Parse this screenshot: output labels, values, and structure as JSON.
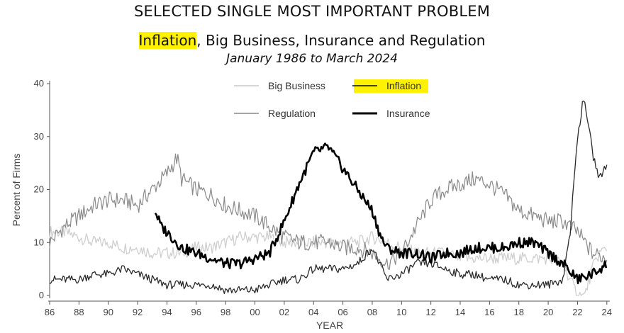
{
  "header": {
    "title": "SELECTED SINGLE MOST IMPORTANT PROBLEM",
    "subtitle_highlight": "Inflation",
    "subtitle_rest": ", Big Business, Insurance and Regulation",
    "date_range": "January 1986 to March 2024"
  },
  "colors": {
    "big_business": "#cfcfcf",
    "inflation": "#2b2b2b",
    "regulation": "#8a8a8a",
    "insurance": "#000000",
    "highlight": "#fff200"
  },
  "chart_data": {
    "type": "line",
    "title": "SELECTED SINGLE MOST IMPORTANT PROBLEM",
    "subtitle": "Inflation, Big Business, Insurance and Regulation",
    "xlabel": "YEAR",
    "ylabel": "Percent of Firms",
    "xlim": [
      1986,
      2024.3
    ],
    "ylim": [
      0,
      40
    ],
    "x_ticks": [
      1986,
      1988,
      1990,
      1992,
      1994,
      1996,
      1998,
      2000,
      2002,
      2004,
      2006,
      2008,
      2010,
      2012,
      2014,
      2016,
      2018,
      2020,
      2022,
      2024
    ],
    "x_tick_labels": [
      "86",
      "88",
      "90",
      "92",
      "94",
      "96",
      "98",
      "00",
      "02",
      "04",
      "06",
      "08",
      "10",
      "12",
      "14",
      "16",
      "18",
      "20",
      "22",
      "24"
    ],
    "y_ticks": [
      0,
      10,
      20,
      30,
      40
    ],
    "y_tick_labels": [
      "0",
      "10",
      "20",
      "30",
      "40"
    ],
    "grid": false,
    "legend_position": "top-center",
    "series": [
      {
        "name": "Big Business",
        "x": [
          1986,
          1987,
          1988,
          1989,
          1990,
          1991,
          1992,
          1993,
          1994,
          1995,
          1996,
          1997,
          1998,
          1999,
          2000,
          2001,
          2002,
          2003,
          2004,
          2005,
          2006,
          2007,
          2008,
          2009,
          2010,
          2011,
          2012,
          2013,
          2014,
          2015,
          2016,
          2017,
          2018,
          2019,
          2020,
          2021,
          2021.5,
          2022,
          2022.5,
          2023,
          2023.5,
          2024
        ],
        "y": [
          12,
          12,
          11,
          10,
          10,
          9,
          9,
          8,
          8,
          8,
          9,
          9,
          10,
          11,
          11,
          11,
          10,
          10,
          10,
          10,
          10,
          10,
          11,
          10,
          9,
          8,
          8,
          8,
          7,
          7,
          7,
          7,
          7,
          7,
          7,
          6,
          3,
          0,
          0,
          5,
          8,
          9
        ]
      },
      {
        "name": "Inflation",
        "x": [
          1986,
          1987,
          1988,
          1989,
          1990,
          1991,
          1992,
          1993,
          1994,
          1995,
          1996,
          1997,
          1998,
          1999,
          2000,
          2001,
          2002,
          2003,
          2004,
          2005,
          2006,
          2007,
          2008,
          2009,
          2010,
          2011,
          2012,
          2013,
          2014,
          2015,
          2016,
          2017,
          2018,
          2019,
          2020,
          2021,
          2021.5,
          2022,
          2022.4,
          2022.8,
          2023,
          2023.5,
          2024
        ],
        "y": [
          3,
          3,
          3,
          4,
          4,
          5,
          4,
          3,
          2,
          2,
          2,
          2,
          1,
          1,
          1,
          2,
          3,
          3,
          5,
          5,
          5,
          6,
          9,
          3,
          4,
          6,
          6,
          5,
          4,
          4,
          3,
          3,
          2,
          2,
          2,
          3,
          12,
          30,
          37,
          32,
          27,
          22,
          25
        ]
      },
      {
        "name": "Regulation",
        "x": [
          1986,
          1987,
          1988,
          1989,
          1990,
          1991,
          1992,
          1993,
          1994,
          1994.7,
          1995,
          1996,
          1997,
          1998,
          1999,
          2000,
          2001,
          2002,
          2003,
          2004,
          2005,
          2006,
          2007,
          2008,
          2009,
          2010,
          2011,
          2012,
          2013,
          2014,
          2015,
          2016,
          2017,
          2018,
          2019,
          2020,
          2021,
          2022,
          2023,
          2024
        ],
        "y": [
          10,
          13,
          15,
          17,
          18,
          18,
          17,
          20,
          23,
          26,
          22,
          20,
          19,
          17,
          16,
          15,
          13,
          11,
          10,
          10,
          10,
          9,
          9,
          8,
          6,
          8,
          13,
          18,
          20,
          21,
          22,
          21,
          19,
          16,
          15,
          14,
          14,
          12,
          8,
          7
        ]
      },
      {
        "name": "Insurance",
        "x": [
          1993.2,
          1993.6,
          1994,
          1995,
          1996,
          1997,
          1998,
          1999,
          2000,
          2001,
          2002,
          2003,
          2004,
          2005,
          2006,
          2007,
          2008,
          2008.6,
          2009,
          2010,
          2011,
          2012,
          2013,
          2014,
          2015,
          2016,
          2017,
          2018,
          2019,
          2020,
          2021,
          2022,
          2023,
          2024
        ],
        "y": [
          16,
          13,
          12,
          9,
          8,
          7,
          6,
          6,
          7,
          8,
          14,
          21,
          27,
          28,
          24,
          20,
          16,
          11,
          9,
          8,
          8,
          7,
          8,
          8,
          9,
          9,
          9,
          10,
          10,
          8,
          6,
          3,
          4,
          6
        ]
      }
    ]
  }
}
